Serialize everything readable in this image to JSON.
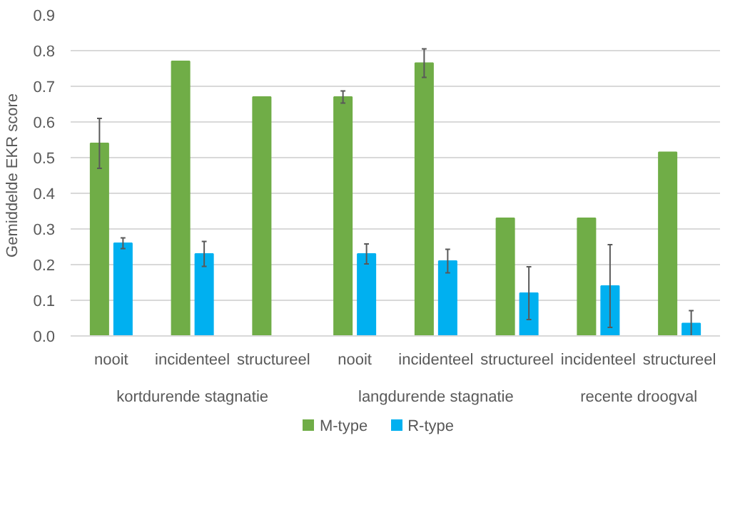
{
  "chart_data": {
    "type": "bar",
    "ylabel": "Gemiddelde EKR score",
    "categories": [
      [
        "kortdurende stagnatie",
        "nooit"
      ],
      [
        null,
        "incidenteel"
      ],
      [
        null,
        "structureel"
      ],
      [
        "langdurende stagnatie",
        "nooit"
      ],
      [
        null,
        "incidenteel"
      ],
      [
        null,
        "structureel"
      ],
      [
        "recente droogval",
        "incidenteel"
      ],
      [
        null,
        "structureel"
      ]
    ],
    "series": [
      {
        "name": "M-type",
        "color": "#70ad47",
        "values": [
          0.54,
          0.77,
          0.67,
          0.67,
          0.765,
          0.33,
          0.33,
          0.515
        ],
        "errors": [
          0.07,
          null,
          null,
          0.017,
          0.04,
          null,
          null,
          null
        ]
      },
      {
        "name": "R-type",
        "color": "#00b0f0",
        "values": [
          0.26,
          0.23,
          null,
          0.23,
          0.21,
          0.12,
          0.14,
          0.035
        ],
        "errors": [
          0.015,
          0.035,
          null,
          0.028,
          0.033,
          0.074,
          0.116,
          0.036
        ]
      }
    ],
    "ylim": [
      0,
      0.9
    ],
    "yticks": [
      {
        "value": 0,
        "label": "0.0"
      },
      {
        "value": 0.1,
        "label": "0.1"
      },
      {
        "value": 0.2,
        "label": "0.2"
      },
      {
        "value": 0.3,
        "label": "0.3"
      },
      {
        "value": 0.4,
        "label": "0.4"
      },
      {
        "value": 0.5,
        "label": "0.5"
      },
      {
        "value": 0.6,
        "label": "0.6"
      },
      {
        "value": 0.7,
        "label": "0.7"
      },
      {
        "value": 0.8,
        "label": "0.8"
      },
      {
        "value": 0.9,
        "label": "0.9"
      }
    ],
    "grid": "y",
    "legend": "bottom"
  }
}
